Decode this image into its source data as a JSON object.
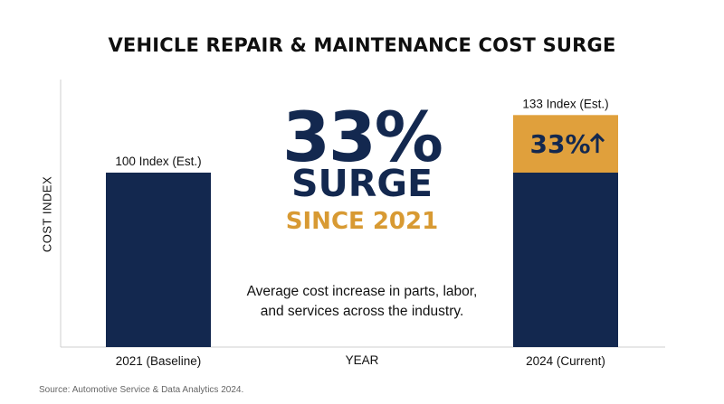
{
  "chart_data": {
    "type": "bar",
    "title": "VEHICLE REPAIR & MAINTENANCE COST SURGE",
    "xlabel": "YEAR",
    "ylabel": "COST INDEX",
    "categories": [
      "2021 (Baseline)",
      "2024 (Current)"
    ],
    "values": [
      100,
      133
    ],
    "data_labels": [
      "100 Index (Est.)",
      "133 Index (Est.)"
    ],
    "increase": {
      "from": 100,
      "to": 133,
      "label": "33%",
      "arrow_icon": "up-arrow-icon"
    },
    "ylim": [
      0,
      160
    ],
    "grid": false,
    "legend": "none"
  },
  "colors": {
    "bar": "#13284f",
    "increase": "#e0a03c",
    "accent_text": "#d89a33",
    "axis": "#cfcfcf"
  },
  "callout": {
    "percent": "33%",
    "surge": "SURGE",
    "since": "SINCE 2021",
    "description_line1": "Average cost increase in parts, labor,",
    "description_line2": "and services across the industry."
  },
  "source": "Source: Automotive Service & Data Analytics 2024."
}
